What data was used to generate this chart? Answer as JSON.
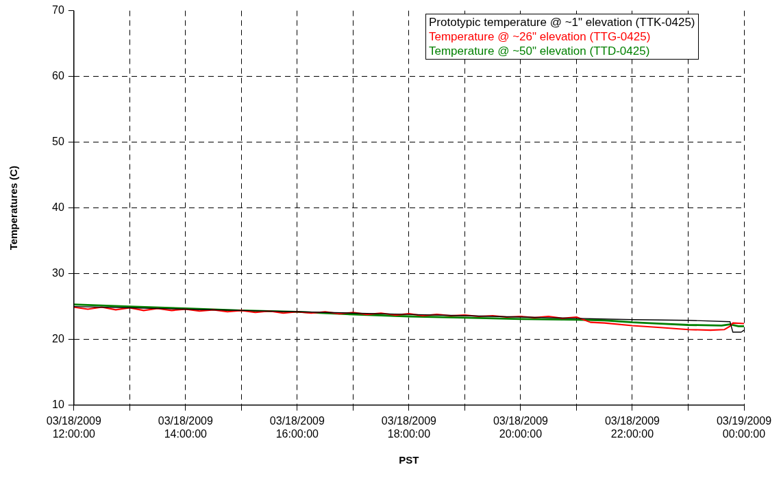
{
  "chart_data": {
    "type": "line",
    "xlabel": "PST",
    "ylabel": "Temperatures (C)",
    "xlim": [
      "2009-03-18T12:00",
      "2009-03-19T00:00"
    ],
    "ylim": [
      10,
      70
    ],
    "xticks": [
      {
        "value": "2009-03-18T12:00",
        "label": "03/18/2009\n12:00:00"
      },
      {
        "value": "2009-03-18T13:00",
        "label": null
      },
      {
        "value": "2009-03-18T14:00",
        "label": "03/18/2009\n14:00:00"
      },
      {
        "value": "2009-03-18T15:00",
        "label": null
      },
      {
        "value": "2009-03-18T16:00",
        "label": "03/18/2009\n16:00:00"
      },
      {
        "value": "2009-03-18T17:00",
        "label": null
      },
      {
        "value": "2009-03-18T18:00",
        "label": "03/18/2009\n18:00:00"
      },
      {
        "value": "2009-03-18T19:00",
        "label": null
      },
      {
        "value": "2009-03-18T20:00",
        "label": "03/18/2009\n20:00:00"
      },
      {
        "value": "2009-03-18T21:00",
        "label": null
      },
      {
        "value": "2009-03-18T22:00",
        "label": "03/18/2009\n22:00:00"
      },
      {
        "value": "2009-03-18T23:00",
        "label": null
      },
      {
        "value": "2009-03-19T00:00",
        "label": "03/19/2009\n00:00:00"
      }
    ],
    "yticks": [
      10,
      20,
      30,
      40,
      50,
      60,
      70
    ],
    "grid": true,
    "legend": "top right",
    "marker": "none",
    "line_style": "solid",
    "series": [
      {
        "name": "Prototypic temperature @ ~1\" elevation (TTK-0425)",
        "color": "#000000",
        "x": [
          "2009-03-18T12:00",
          "2009-03-18T13:00",
          "2009-03-18T14:00",
          "2009-03-18T15:00",
          "2009-03-18T16:00",
          "2009-03-18T17:00",
          "2009-03-18T18:00",
          "2009-03-18T19:00",
          "2009-03-18T20:00",
          "2009-03-18T21:00",
          "2009-03-18T22:00",
          "2009-03-18T23:00",
          "2009-03-18T23:45",
          "2009-03-18T23:48",
          "2009-03-18T23:57",
          "2009-03-19T00:00"
        ],
        "values": [
          25.0,
          24.8,
          24.6,
          24.4,
          24.2,
          24.0,
          23.8,
          23.6,
          23.4,
          23.2,
          23.0,
          22.9,
          22.7,
          21.1,
          21.1,
          21.4
        ]
      },
      {
        "name": "Temperature @ ~26\" elevation (TTG-0425)",
        "color": "#ff0000",
        "x": [
          "2009-03-18T12:00",
          "2009-03-18T12:15",
          "2009-03-18T12:30",
          "2009-03-18T12:45",
          "2009-03-18T13:00",
          "2009-03-18T13:15",
          "2009-03-18T13:30",
          "2009-03-18T13:45",
          "2009-03-18T14:00",
          "2009-03-18T14:15",
          "2009-03-18T14:30",
          "2009-03-18T14:45",
          "2009-03-18T15:00",
          "2009-03-18T15:15",
          "2009-03-18T15:30",
          "2009-03-18T15:45",
          "2009-03-18T16:00",
          "2009-03-18T16:15",
          "2009-03-18T16:30",
          "2009-03-18T16:45",
          "2009-03-18T17:00",
          "2009-03-18T17:15",
          "2009-03-18T17:30",
          "2009-03-18T17:45",
          "2009-03-18T18:00",
          "2009-03-18T18:15",
          "2009-03-18T18:30",
          "2009-03-18T18:45",
          "2009-03-18T19:00",
          "2009-03-18T19:15",
          "2009-03-18T19:30",
          "2009-03-18T19:45",
          "2009-03-18T20:00",
          "2009-03-18T20:15",
          "2009-03-18T20:30",
          "2009-03-18T20:45",
          "2009-03-18T21:00",
          "2009-03-18T21:15",
          "2009-03-18T21:30",
          "2009-03-18T22:00",
          "2009-03-18T22:30",
          "2009-03-18T23:00",
          "2009-03-18T23:24",
          "2009-03-18T23:39",
          "2009-03-18T23:45",
          "2009-03-18T23:48",
          "2009-03-19T00:00"
        ],
        "values": [
          24.9,
          24.6,
          24.9,
          24.5,
          24.8,
          24.4,
          24.7,
          24.4,
          24.6,
          24.3,
          24.5,
          24.2,
          24.4,
          24.1,
          24.3,
          24.0,
          24.2,
          24.0,
          24.2,
          23.9,
          24.1,
          23.8,
          24.0,
          23.7,
          23.9,
          23.6,
          23.8,
          23.6,
          23.7,
          23.5,
          23.6,
          23.4,
          23.5,
          23.3,
          23.5,
          23.2,
          23.4,
          22.6,
          22.5,
          22.1,
          21.8,
          21.5,
          21.4,
          21.5,
          22.0,
          22.5,
          22.4
        ]
      },
      {
        "name": "Temperature @ ~50\" elevation (TTD-0425)",
        "color": "#008000",
        "x": [
          "2009-03-18T12:00",
          "2009-03-18T13:00",
          "2009-03-18T14:00",
          "2009-03-18T15:00",
          "2009-03-18T16:00",
          "2009-03-18T17:00",
          "2009-03-18T18:00",
          "2009-03-18T19:00",
          "2009-03-18T20:00",
          "2009-03-18T21:00",
          "2009-03-18T21:30",
          "2009-03-18T22:00",
          "2009-03-18T22:30",
          "2009-03-18T23:00",
          "2009-03-18T23:36",
          "2009-03-18T23:45",
          "2009-03-18T23:54",
          "2009-03-19T00:00"
        ],
        "values": [
          25.3,
          25.0,
          24.7,
          24.4,
          24.2,
          23.8,
          23.5,
          23.3,
          23.1,
          23.0,
          22.9,
          22.6,
          22.4,
          22.2,
          22.1,
          22.3,
          22.0,
          22.0
        ]
      }
    ]
  }
}
